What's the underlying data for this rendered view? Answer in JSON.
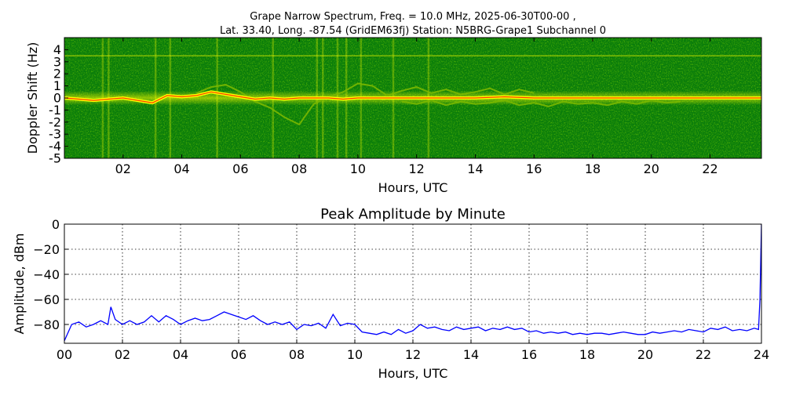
{
  "figure": {
    "title_line1": "Grape Narrow Spectrum, Freq. = 10.0 MHz, 2025-06-30T00-00 ,",
    "title_line2": "Lat.  33.40, Long. -87.54 (GridEM63fj) Station: N5BRG-Grape1 Subchannel 0"
  },
  "chart_data": [
    {
      "type": "heatmap",
      "xlabel": "Hours, UTC",
      "ylabel": "Doppler Shift (Hz)",
      "xlim": [
        0,
        23.75
      ],
      "ylim": [
        -5,
        5
      ],
      "x_ticks": [
        2,
        4,
        6,
        8,
        10,
        12,
        14,
        16,
        18,
        20,
        22
      ],
      "x_tick_labels": [
        "02",
        "04",
        "06",
        "08",
        "10",
        "12",
        "14",
        "16",
        "18",
        "20",
        "22"
      ],
      "y_ticks": [
        4,
        3,
        2,
        1,
        0,
        -1,
        -2,
        -3,
        -4,
        -5
      ],
      "y_tick_labels": [
        "4",
        "3",
        "2",
        "1",
        "0",
        "-1",
        "-2",
        "-3",
        "-4",
        "-5"
      ],
      "colors": {
        "background": "#0a7d0a",
        "mid": "#7ab800",
        "high": "#ffff00",
        "peak": "#ff2000"
      },
      "carrier_trace": {
        "x": [
          0,
          0.5,
          1.0,
          1.5,
          2.0,
          2.5,
          3.0,
          3.5,
          4.0,
          4.5,
          5.0,
          5.5,
          6.0,
          6.5,
          7.0,
          7.5,
          8.0,
          8.5,
          9.0,
          9.5,
          10.0,
          11.0,
          12.0,
          13.0,
          14.0,
          15.0,
          16.0,
          17.0,
          18.0,
          19.0,
          20.0,
          21.0,
          22.0,
          23.0,
          23.75
        ],
        "y": [
          0,
          -0.1,
          -0.2,
          -0.1,
          0,
          -0.2,
          -0.4,
          0.2,
          0.1,
          0.2,
          0.5,
          0.3,
          0.1,
          -0.1,
          0,
          -0.1,
          0,
          0,
          0,
          -0.1,
          0,
          0,
          0,
          0,
          0,
          0.1,
          0,
          0,
          0,
          0,
          0,
          0,
          0,
          0,
          0
        ]
      },
      "secondary_traces": [
        {
          "x": [
            4.5,
            5.0,
            5.5,
            6.0,
            6.5,
            7.0,
            7.5,
            8.0,
            8.5,
            9.0,
            9.5,
            10.0,
            10.5,
            11.0,
            11.5,
            12.0,
            12.5,
            13.0,
            13.5,
            14.0,
            14.5,
            15.0,
            15.5,
            16.0
          ],
          "y": [
            0.4,
            0.9,
            1.1,
            0.5,
            -0.3,
            -0.8,
            -1.6,
            -2.2,
            -0.5,
            0.1,
            0.5,
            1.2,
            1.0,
            0.2,
            0.6,
            0.9,
            0.4,
            0.7,
            0.3,
            0.5,
            0.8,
            0.3,
            0.7,
            0.4
          ]
        },
        {
          "x": [
            11.5,
            12.0,
            12.5,
            13.0,
            13.5,
            14.0,
            14.5,
            15.0,
            15.5,
            16.0,
            16.5,
            17.0,
            17.5,
            18.0,
            18.5,
            19.0,
            19.5,
            20.0,
            20.5,
            21.0
          ],
          "y": [
            -0.3,
            -0.5,
            -0.2,
            -0.6,
            -0.3,
            -0.5,
            -0.4,
            -0.2,
            -0.6,
            -0.4,
            -0.7,
            -0.3,
            -0.5,
            -0.4,
            -0.6,
            -0.3,
            -0.5,
            -0.2,
            -0.4,
            -0.3
          ]
        }
      ],
      "constant_line_hz": 3.5,
      "vertical_bands_hours": [
        1.3,
        1.5,
        3.1,
        3.6,
        5.2,
        7.1,
        8.6,
        8.8,
        9.3,
        9.6,
        10.1,
        11.2,
        12.4
      ]
    },
    {
      "type": "line",
      "title": "Peak Amplitude by Minute",
      "xlabel": "Hours, UTC",
      "ylabel": "Amplitude, dBm",
      "xlim": [
        0,
        24
      ],
      "ylim": [
        -95,
        0
      ],
      "grid": true,
      "line_color": "#0000ff",
      "x_ticks": [
        0,
        2,
        4,
        6,
        8,
        10,
        12,
        14,
        16,
        18,
        20,
        22,
        24
      ],
      "x_tick_labels": [
        "00",
        "02",
        "04",
        "06",
        "08",
        "10",
        "12",
        "14",
        "16",
        "18",
        "20",
        "22",
        "24"
      ],
      "y_ticks": [
        0,
        -20,
        -40,
        -60,
        -80
      ],
      "y_tick_labels": [
        "0",
        "−20",
        "−40",
        "−60",
        "−80"
      ],
      "series": [
        {
          "x": [
            0,
            0.25,
            0.5,
            0.75,
            1.0,
            1.25,
            1.5,
            1.6,
            1.75,
            2.0,
            2.25,
            2.5,
            2.75,
            3.0,
            3.25,
            3.5,
            3.75,
            4.0,
            4.25,
            4.5,
            4.75,
            5.0,
            5.25,
            5.5,
            5.75,
            6.0,
            6.25,
            6.5,
            6.75,
            7.0,
            7.25,
            7.5,
            7.75,
            8.0,
            8.25,
            8.5,
            8.75,
            9.0,
            9.25,
            9.5,
            9.75,
            10.0,
            10.25,
            10.5,
            10.75,
            11.0,
            11.25,
            11.5,
            11.75,
            12.0,
            12.25,
            12.5,
            12.75,
            13.0,
            13.25,
            13.5,
            13.75,
            14.0,
            14.25,
            14.5,
            14.75,
            15.0,
            15.25,
            15.5,
            15.75,
            16.0,
            16.25,
            16.5,
            16.75,
            17.0,
            17.25,
            17.5,
            17.75,
            18.0,
            18.25,
            18.5,
            18.75,
            19.0,
            19.25,
            19.5,
            19.75,
            20.0,
            20.25,
            20.5,
            20.75,
            21.0,
            21.25,
            21.5,
            21.75,
            22.0,
            22.25,
            22.5,
            22.75,
            23.0,
            23.25,
            23.5,
            23.75,
            23.9,
            23.95,
            24.0
          ],
          "y": [
            -93,
            -80,
            -78,
            -82,
            -80,
            -77,
            -80,
            -66,
            -76,
            -80,
            -77,
            -80,
            -78,
            -73,
            -78,
            -73,
            -76,
            -80,
            -77,
            -75,
            -77,
            -76,
            -73,
            -70,
            -72,
            -74,
            -76,
            -73,
            -77,
            -80,
            -78,
            -80,
            -78,
            -84,
            -80,
            -81,
            -79,
            -83,
            -72,
            -81,
            -79,
            -80,
            -86,
            -87,
            -88,
            -86,
            -88,
            -84,
            -87,
            -85,
            -80,
            -83,
            -82,
            -84,
            -85,
            -82,
            -84,
            -83,
            -82,
            -85,
            -83,
            -84,
            -82,
            -84,
            -83,
            -86,
            -85,
            -87,
            -86,
            -87,
            -86,
            -88,
            -87,
            -88,
            -87,
            -87,
            -88,
            -87,
            -86,
            -87,
            -88,
            -88,
            -86,
            -87,
            -86,
            -85,
            -86,
            -84,
            -85,
            -86,
            -83,
            -84,
            -82,
            -85,
            -84,
            -85,
            -83,
            -84,
            -60,
            0
          ]
        }
      ]
    }
  ]
}
